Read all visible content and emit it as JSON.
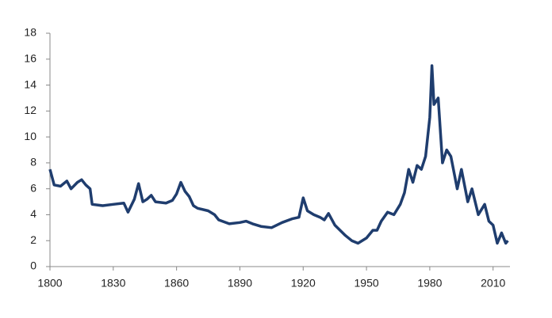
{
  "chart_data": {
    "type": "line",
    "x": [
      1800,
      1802,
      1805,
      1808,
      1810,
      1813,
      1815,
      1817,
      1819,
      1820,
      1825,
      1830,
      1835,
      1837,
      1840,
      1842,
      1844,
      1846,
      1848,
      1850,
      1855,
      1858,
      1860,
      1862,
      1864,
      1866,
      1868,
      1870,
      1875,
      1878,
      1880,
      1885,
      1890,
      1893,
      1896,
      1900,
      1905,
      1910,
      1915,
      1918,
      1920,
      1922,
      1925,
      1928,
      1930,
      1932,
      1935,
      1940,
      1943,
      1946,
      1950,
      1953,
      1955,
      1957,
      1960,
      1963,
      1966,
      1968,
      1970,
      1972,
      1974,
      1976,
      1978,
      1980,
      1981,
      1982,
      1984,
      1986,
      1988,
      1990,
      1993,
      1995,
      1998,
      2000,
      2003,
      2006,
      2008,
      2010,
      2012,
      2014,
      2016,
      2017
    ],
    "series": [
      {
        "color": "#1f3d6e",
        "values": [
          7.5,
          6.3,
          6.2,
          6.6,
          6.0,
          6.5,
          6.7,
          6.3,
          6.0,
          4.8,
          4.7,
          4.8,
          4.9,
          4.2,
          5.2,
          6.4,
          5.0,
          5.2,
          5.5,
          5.0,
          4.9,
          5.1,
          5.6,
          6.5,
          5.8,
          5.4,
          4.7,
          4.5,
          4.3,
          4.0,
          3.6,
          3.3,
          3.4,
          3.5,
          3.3,
          3.1,
          3.0,
          3.4,
          3.7,
          3.8,
          5.3,
          4.3,
          4.0,
          3.8,
          3.6,
          4.1,
          3.2,
          2.4,
          2.0,
          1.8,
          2.2,
          2.8,
          2.8,
          3.5,
          4.2,
          4.0,
          4.8,
          5.7,
          7.5,
          6.5,
          7.8,
          7.5,
          8.5,
          11.5,
          15.5,
          12.5,
          13.0,
          8.0,
          9.0,
          8.5,
          6.0,
          7.5,
          5.0,
          6.0,
          4.0,
          4.8,
          3.5,
          3.2,
          1.8,
          2.6,
          1.8,
          2.0
        ]
      }
    ],
    "xlim": [
      1800,
      2018
    ],
    "xticks": [
      1800,
      1830,
      1860,
      1890,
      1920,
      1950,
      1980,
      2010
    ],
    "ylim": [
      0,
      18
    ],
    "yticks": [
      0,
      2,
      4,
      6,
      8,
      10,
      12,
      14,
      16,
      18
    ]
  }
}
